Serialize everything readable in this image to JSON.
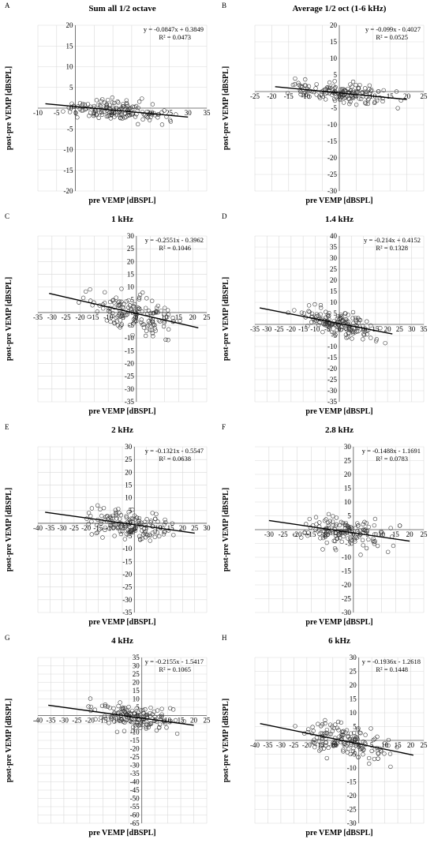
{
  "chart_data": [
    {
      "panel": "A",
      "type": "scatter",
      "title": "Sum all 1/2 octave",
      "xlabel": "pre VEMP [dBSPL]",
      "ylabel": "post-pre VEMP [dBSPL]",
      "xlim": [
        -10,
        35
      ],
      "ylim": [
        -20,
        20
      ],
      "xticks": [
        -10,
        -5,
        0,
        5,
        10,
        15,
        20,
        25,
        30,
        35
      ],
      "yticks": [
        -20,
        -15,
        -10,
        -5,
        0,
        5,
        10,
        15,
        20
      ],
      "grid": true,
      "trendline": {
        "slope": -0.0847,
        "intercept": 0.3849,
        "x_range": [
          -8,
          30
        ]
      },
      "equation": "y = -0.0847x + 0.3849",
      "r2": "R² = 0.0473",
      "x_spread": [
        -8,
        30
      ],
      "y_spread": [
        -4.5,
        4.5
      ]
    },
    {
      "panel": "B",
      "type": "scatter",
      "title": "Average 1/2 oct (1-6 kHz)",
      "xlabel": "pre VEMP [dBSPL]",
      "ylabel": "post-pre VEMP [dBSPL]",
      "xlim": [
        -25,
        25
      ],
      "ylim": [
        -30,
        20
      ],
      "xticks": [
        -25,
        -20,
        -15,
        -10,
        -5,
        0,
        5,
        10,
        15,
        20,
        25
      ],
      "yticks": [
        -30,
        -25,
        -20,
        -15,
        -10,
        -5,
        0,
        5,
        10,
        15,
        20
      ],
      "grid": true,
      "trendline": {
        "slope": -0.099,
        "intercept": -0.4027,
        "x_range": [
          -19,
          20
        ]
      },
      "equation": "y = -0.099x - 0.4027",
      "r2": "R² = 0.0525",
      "x_spread": [
        -19,
        20
      ],
      "y_spread": [
        -5,
        5
      ]
    },
    {
      "panel": "C",
      "type": "scatter",
      "title": "1 kHz",
      "xlabel": "pre VEMP [dBSPL]",
      "ylabel": "post-pre VEMP [dBSPL]",
      "xlim": [
        -35,
        25
      ],
      "ylim": [
        -35,
        30
      ],
      "xticks": [
        -35,
        -30,
        -25,
        -20,
        -15,
        -10,
        -5,
        0,
        5,
        10,
        15,
        20,
        25
      ],
      "yticks": [
        -35,
        -30,
        -25,
        -20,
        -15,
        -10,
        -5,
        0,
        5,
        10,
        15,
        20,
        25,
        30
      ],
      "grid": true,
      "trendline": {
        "slope": -0.2551,
        "intercept": -0.3962,
        "x_range": [
          -31,
          22
        ]
      },
      "equation": "y = -0.2551x - 0.3962",
      "r2": "R² = 0.1046",
      "x_spread": [
        -25,
        21
      ],
      "y_spread": [
        -12,
        12
      ]
    },
    {
      "panel": "D",
      "type": "scatter",
      "title": "1.4 kHz",
      "xlabel": "pre VEMP [dBSPL]",
      "ylabel": "post-pre VEMP [dBSPL]",
      "xlim": [
        -35,
        35
      ],
      "ylim": [
        -35,
        40
      ],
      "xticks": [
        -35,
        -30,
        -25,
        -20,
        -15,
        -10,
        -5,
        0,
        5,
        10,
        15,
        20,
        25,
        30,
        35
      ],
      "yticks": [
        -35,
        -30,
        -25,
        -20,
        -15,
        -10,
        -5,
        0,
        5,
        10,
        15,
        20,
        25,
        30,
        35,
        40
      ],
      "grid": true,
      "trendline": {
        "slope": -0.214,
        "intercept": 0.4152,
        "x_range": [
          -33,
          22
        ]
      },
      "equation": "y = -0.214x + 0.4152",
      "r2": "R² = 0.1328",
      "x_spread": [
        -25,
        22
      ],
      "y_spread": [
        -9,
        9
      ]
    },
    {
      "panel": "E",
      "type": "scatter",
      "title": "2 kHz",
      "xlabel": "pre VEMP [dBSPL]",
      "ylabel": "post-pre VEMP [dBSPL]",
      "xlim": [
        -40,
        30
      ],
      "ylim": [
        -35,
        30
      ],
      "xticks": [
        -40,
        -35,
        -30,
        -25,
        -20,
        -15,
        -10,
        -5,
        0,
        5,
        10,
        15,
        20,
        25,
        30
      ],
      "yticks": [
        -35,
        -30,
        -25,
        -20,
        -15,
        -10,
        -5,
        0,
        5,
        10,
        15,
        20,
        25,
        30
      ],
      "grid": true,
      "trendline": {
        "slope": -0.1321,
        "intercept": -0.5547,
        "x_range": [
          -37,
          25
        ]
      },
      "equation": "y = -0.1321x - 0.5547",
      "r2": "R² = 0.0638",
      "x_spread": [
        -28,
        24
      ],
      "y_spread": [
        -10,
        9
      ]
    },
    {
      "panel": "F",
      "type": "scatter",
      "title": "2.8 kHz",
      "xlabel": "pre VEMP [dBSPL]",
      "ylabel": "post-pre VEMP [dBSPL]",
      "xlim": [
        -35,
        25
      ],
      "ylim": [
        -30,
        30
      ],
      "xticks": [
        -30,
        -25,
        -20,
        -15,
        -10,
        -5,
        0,
        5,
        10,
        15,
        20,
        25
      ],
      "yticks": [
        -30,
        -25,
        -20,
        -15,
        -10,
        -5,
        0,
        5,
        10,
        15,
        20,
        25,
        30
      ],
      "grid": true,
      "trendline": {
        "slope": -0.1488,
        "intercept": -1.1691,
        "x_range": [
          -30,
          20
        ]
      },
      "equation": "y = -0.1488x - 1.1691",
      "r2": "R² = 0.0783",
      "x_spread": [
        -27,
        20
      ],
      "y_spread": [
        -10,
        9
      ]
    },
    {
      "panel": "G",
      "type": "scatter",
      "title": "4 kHz",
      "xlabel": "pre VEMP [dBSPL]",
      "ylabel": "post-pre VEMP [dBSPL]",
      "xlim": [
        -40,
        25
      ],
      "ylim": [
        -65,
        35
      ],
      "xticks": [
        -40,
        -35,
        -30,
        -25,
        -20,
        -15,
        -10,
        -5,
        0,
        5,
        10,
        15,
        20,
        25
      ],
      "yticks": [
        -65,
        -60,
        -55,
        -50,
        -45,
        -40,
        -35,
        -30,
        -25,
        -20,
        -15,
        -10,
        -5,
        0,
        5,
        10,
        15,
        20,
        25,
        30,
        35
      ],
      "grid": true,
      "trendline": {
        "slope": -0.2155,
        "intercept": -1.5417,
        "x_range": [
          -36,
          20
        ]
      },
      "equation": "y = -0.2155x - 1.5417",
      "r2": "R² = 0.1065",
      "x_spread": [
        -27,
        20
      ],
      "y_spread": [
        -12,
        10
      ]
    },
    {
      "panel": "H",
      "type": "scatter",
      "title": "6 kHz",
      "xlabel": "pre VEMP [dBSPL]",
      "ylabel": "post-pre VEMP [dBSPL]",
      "xlim": [
        -40,
        25
      ],
      "ylim": [
        -30,
        30
      ],
      "xticks": [
        -40,
        -35,
        -30,
        -25,
        -20,
        -15,
        -10,
        -5,
        0,
        5,
        10,
        15,
        20,
        25
      ],
      "yticks": [
        -30,
        -25,
        -20,
        -15,
        -10,
        -5,
        0,
        5,
        10,
        15,
        20,
        25,
        30
      ],
      "grid": true,
      "trendline": {
        "slope": -0.1936,
        "intercept": -1.2618,
        "x_range": [
          -38,
          21
        ]
      },
      "equation": "y = -0.1936x - 1.2618",
      "r2": "R² = 0.1448",
      "x_spread": [
        -30,
        21
      ],
      "y_spread": [
        -10,
        9
      ]
    }
  ]
}
